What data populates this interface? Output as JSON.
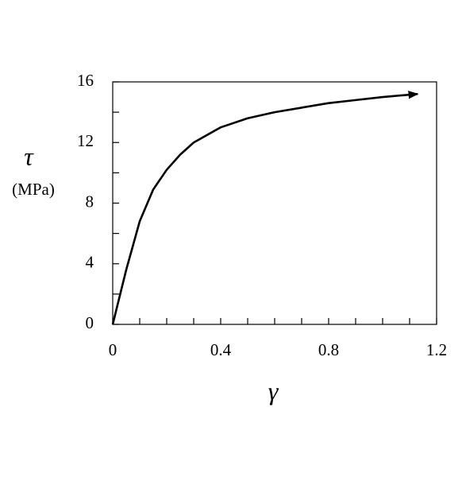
{
  "chart_data": {
    "type": "line",
    "y_label": "τ",
    "y_unit": "(MPa)",
    "x_label": "γ",
    "x": [
      0,
      0.05,
      0.1,
      0.15,
      0.2,
      0.25,
      0.3,
      0.4,
      0.5,
      0.6,
      0.7,
      0.8,
      0.9,
      1.0,
      1.13
    ],
    "series": [
      {
        "color": "#000000",
        "values": [
          0,
          3.6,
          6.8,
          8.9,
          10.2,
          11.2,
          12.0,
          13.0,
          13.6,
          14.0,
          14.3,
          14.6,
          14.8,
          15.0,
          15.2
        ]
      }
    ],
    "xlim": [
      0,
      1.2
    ],
    "ylim": [
      0,
      16
    ],
    "xticks": [
      0,
      0.4,
      0.8,
      1.2
    ],
    "yticks": [
      0,
      4,
      8,
      12,
      16
    ],
    "xminorticks": [
      0.1,
      0.2,
      0.3,
      0.5,
      0.6,
      0.7,
      0.9,
      1.0,
      1.1
    ],
    "yminorticks": [
      2,
      6,
      10,
      14
    ],
    "end_arrow": true
  }
}
